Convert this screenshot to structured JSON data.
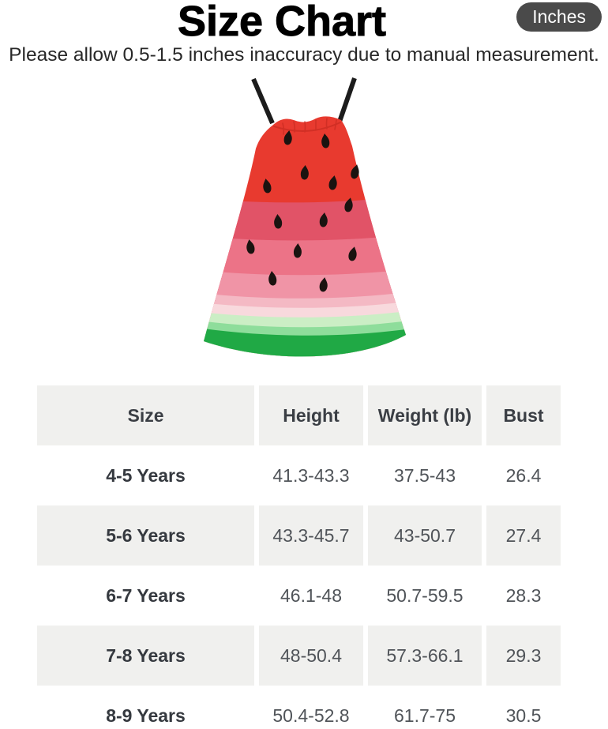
{
  "header": {
    "title": "Size Chart",
    "unit_badge": "Inches",
    "badge_bg": "#4a4a4a",
    "subtitle": "Please allow 0.5-1.5 inches inaccuracy due to manual measurement."
  },
  "product_image": {
    "description": "watermelon print sleeveless strap dress",
    "colors": {
      "strap": "#1c1c1c",
      "red": "#e83a2f",
      "rose": "#e15367",
      "pink": "#ec7387",
      "light_pink": "#f094a6",
      "pale_pink": "#f4b9c4",
      "blush": "#f8d9dd",
      "mint": "#cbeec5",
      "light_green": "#8edd9b",
      "green": "#20a945",
      "seed": "#1a1310",
      "fold": "#c62a20"
    }
  },
  "table": {
    "columns": [
      "Size",
      "Height",
      "Weight (lb)",
      "Bust"
    ],
    "rows": [
      [
        "4-5 Years",
        "41.3-43.3",
        "37.5-43",
        "26.4"
      ],
      [
        "5-6 Years",
        "43.3-45.7",
        "43-50.7",
        "27.4"
      ],
      [
        "6-7 Years",
        "46.1-48",
        "50.7-59.5",
        "28.3"
      ],
      [
        "7-8 Years",
        "48-50.4",
        "57.3-66.1",
        "29.3"
      ],
      [
        "8-9 Years",
        "50.4-52.8",
        "61.7-75",
        "30.5"
      ]
    ]
  }
}
